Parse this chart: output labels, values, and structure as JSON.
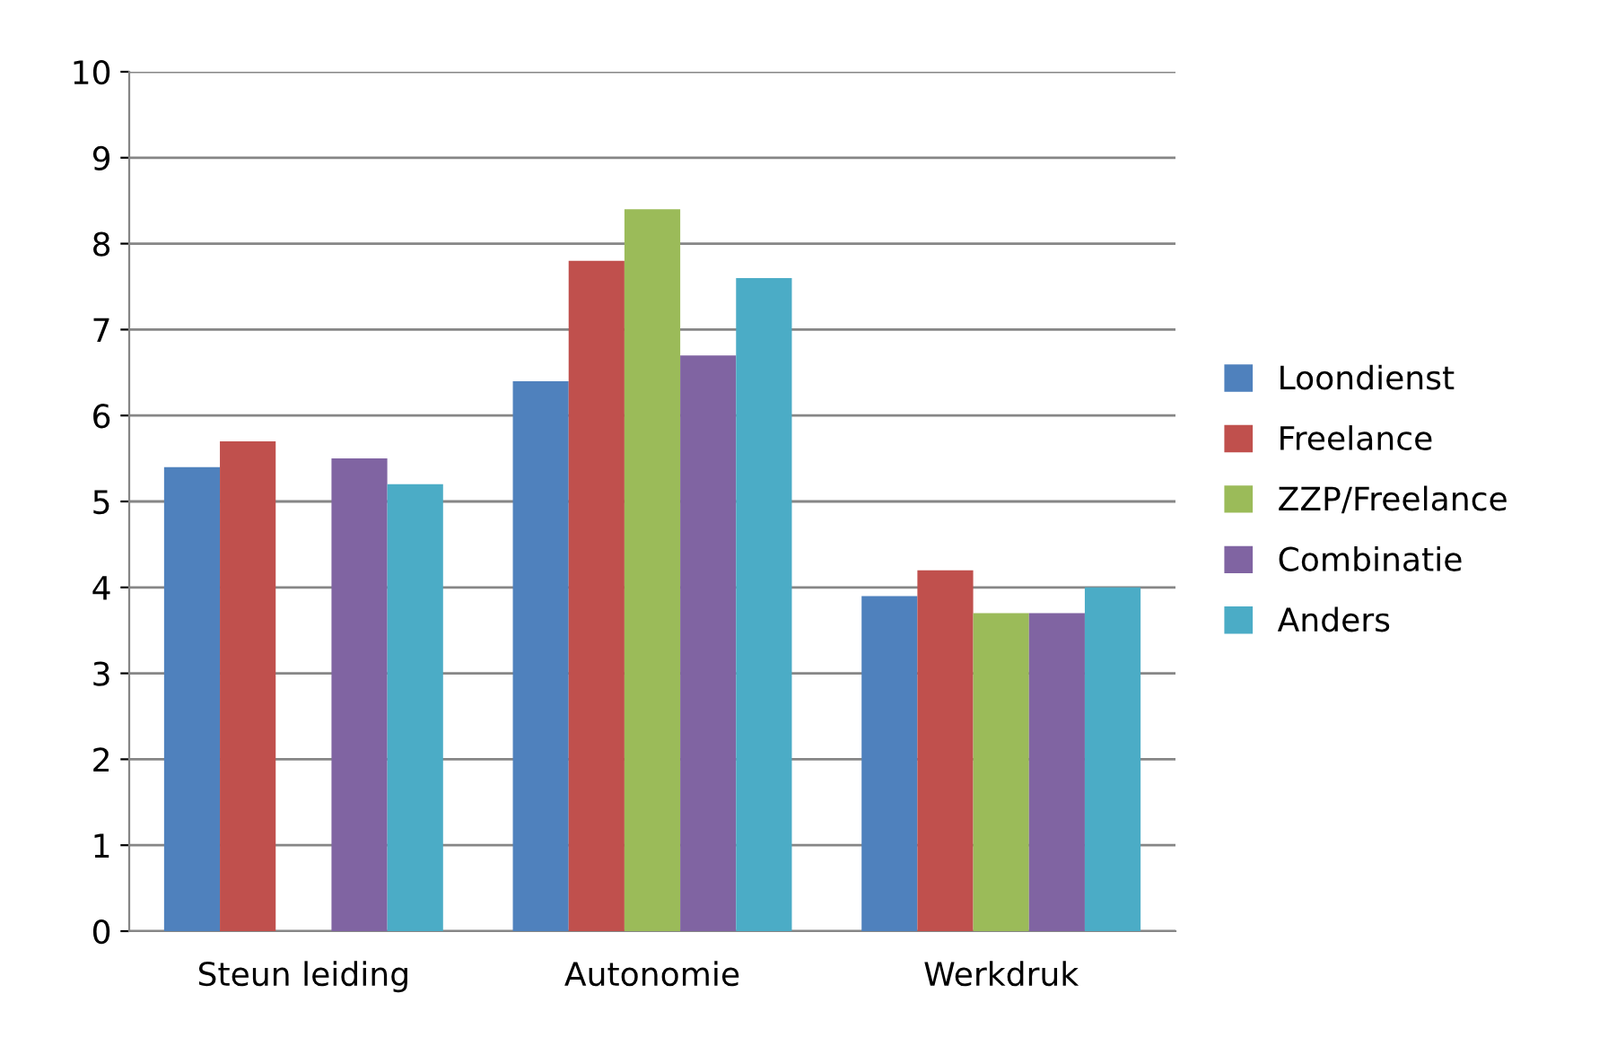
{
  "chart_data": {
    "type": "bar",
    "categories": [
      "Steun leiding",
      "Autonomie",
      "Werkdruk"
    ],
    "series": [
      {
        "name": "Loondienst",
        "color": "#4f81bd",
        "values": [
          5.4,
          6.4,
          3.9
        ]
      },
      {
        "name": "Freelance",
        "color": "#c0504d",
        "values": [
          5.7,
          7.8,
          4.2
        ]
      },
      {
        "name": "ZZP/Freelance",
        "color": "#9bbb59",
        "values": [
          null,
          8.4,
          3.7
        ]
      },
      {
        "name": "Combinatie",
        "color": "#8064a2",
        "values": [
          5.5,
          6.7,
          3.7
        ]
      },
      {
        "name": "Anders",
        "color": "#4bacc6",
        "values": [
          5.2,
          7.6,
          4.0
        ]
      }
    ],
    "ylim": [
      0,
      10
    ],
    "yticks": [
      0,
      1,
      2,
      3,
      4,
      5,
      6,
      7,
      8,
      9,
      10
    ],
    "grid": "y",
    "legend": "right"
  }
}
